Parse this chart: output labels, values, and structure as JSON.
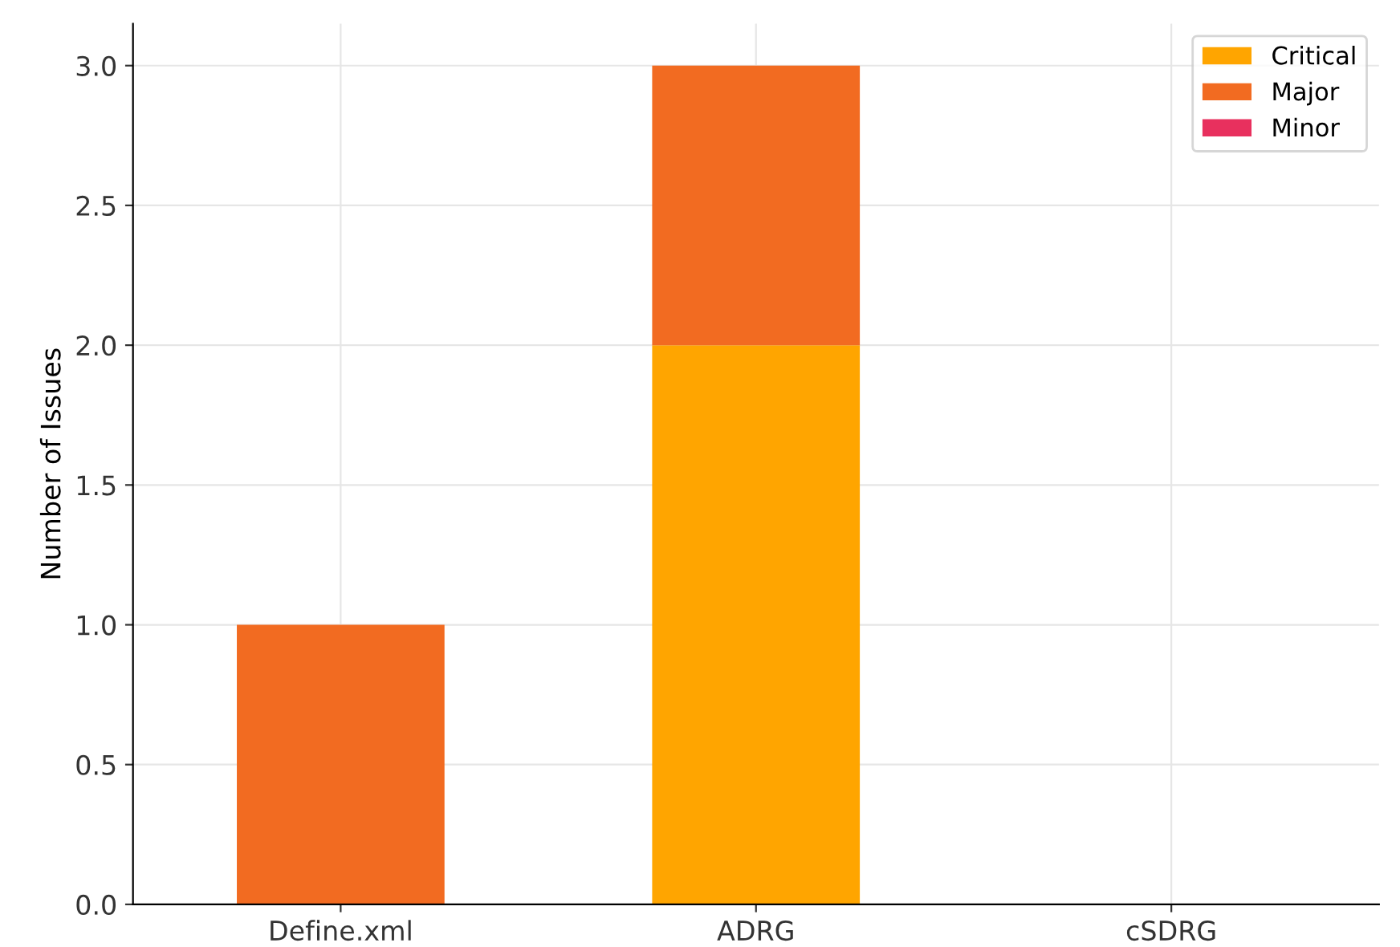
{
  "chart_data": {
    "type": "bar",
    "stacked": true,
    "ylabel": "Number of Issues",
    "categories": [
      "Define.xml",
      "ADRG",
      "cSDRG"
    ],
    "series": [
      {
        "name": "Critical",
        "color": "#ffa500",
        "values": [
          0,
          2,
          0
        ]
      },
      {
        "name": "Major",
        "color": "#f26b21",
        "values": [
          1,
          1,
          0
        ]
      },
      {
        "name": "Minor",
        "color": "#e8305e",
        "values": [
          0,
          0,
          0
        ]
      }
    ],
    "ylim": [
      0,
      3.15
    ],
    "yticks": [
      {
        "value": 0,
        "label": "0.0"
      },
      {
        "value": 0.5,
        "label": "0.5"
      },
      {
        "value": 1,
        "label": "1.0"
      },
      {
        "value": 1.5,
        "label": "1.5"
      },
      {
        "value": 2,
        "label": "2.0"
      },
      {
        "value": 2.5,
        "label": "2.5"
      },
      {
        "value": 3,
        "label": "3.0"
      }
    ],
    "grid": true,
    "legend": "top right"
  }
}
